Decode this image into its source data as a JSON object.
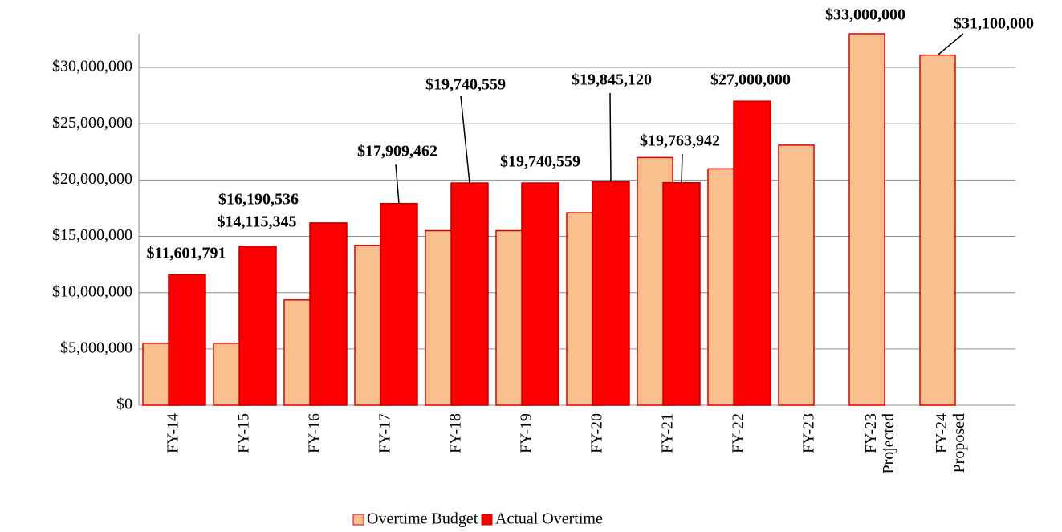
{
  "chart_data": {
    "type": "bar",
    "categories": [
      "FY-14",
      "FY-15",
      "FY-16",
      "FY-17",
      "FY-18",
      "FY-19",
      "FY-20",
      "FY-21",
      "FY-22",
      "FY-23",
      "FY-23 Projected",
      "FY-24 Proposed"
    ],
    "series": [
      {
        "name": "Overtime Budget",
        "color": "#f9c08f",
        "values": [
          5500000,
          5500000,
          9350000,
          14200000,
          15500000,
          15500000,
          17100000,
          22000000,
          21000000,
          23100000,
          33000000,
          31100000
        ],
        "value_labels": [
          null,
          null,
          null,
          null,
          null,
          null,
          null,
          null,
          null,
          null,
          "$33,000,000",
          "$31,100,000"
        ]
      },
      {
        "name": "Actual Overtime",
        "color": "#ff0000",
        "values": [
          11601791,
          14115345,
          16190536,
          17909462,
          19740559,
          19740559,
          19845120,
          19763942,
          27000000,
          null,
          null,
          null
        ],
        "value_labels": [
          "$11,601,791",
          "$14,115,345",
          "$16,190,536",
          "$17,909,462",
          "$19,740,559",
          "$19,740,559",
          "$19,845,120",
          "$19,763,942",
          "$27,000,000",
          null,
          null,
          null
        ]
      }
    ],
    "ylim": [
      0,
      33000000
    ],
    "yticks": [
      {
        "value": 0,
        "label": "$0"
      },
      {
        "value": 5000000,
        "label": "$5,000,000"
      },
      {
        "value": 10000000,
        "label": "$10,000,000"
      },
      {
        "value": 15000000,
        "label": "$15,000,000"
      },
      {
        "value": 20000000,
        "label": "$20,000,000"
      },
      {
        "value": 25000000,
        "label": "$25,000,000"
      },
      {
        "value": 30000000,
        "label": "$30,000,000"
      }
    ],
    "grid": true,
    "legend": "bottom"
  }
}
